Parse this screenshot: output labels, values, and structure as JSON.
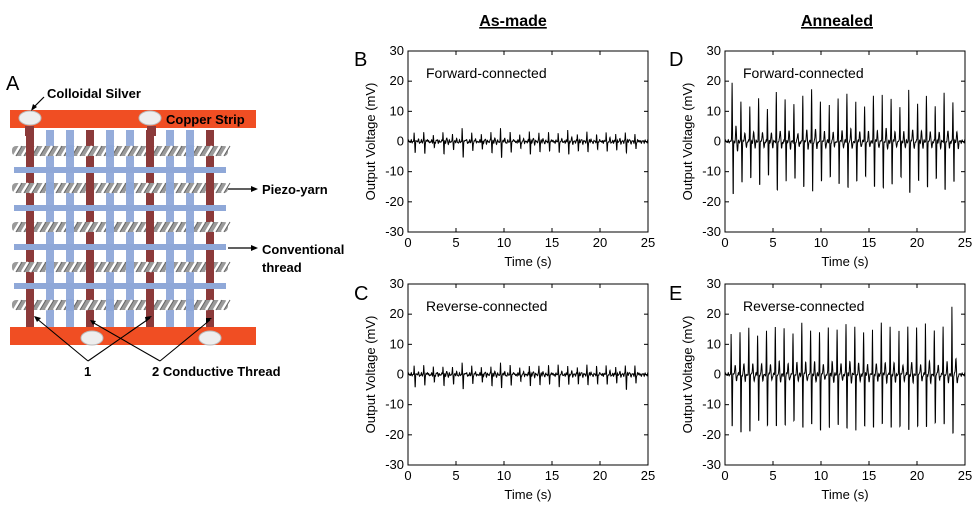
{
  "figure": {
    "column_headers": [
      "As-made",
      "Annealed"
    ],
    "schematic": {
      "panel_letter": "A",
      "labels": {
        "colloidal_silver": "Colloidal Silver",
        "copper_strip": "Copper Strip",
        "piezo_yarn": "Piezo-yarn",
        "conventional_line1": "Conventional",
        "conventional_line2": "thread",
        "one": "1",
        "two": "2 Conductive Thread"
      },
      "colors": {
        "copper": "#f04e23",
        "conductive": "#8b3a3a",
        "conventional": "#8fa8d8",
        "piezo": "#9a9a9a",
        "silver": "#eeeeee"
      }
    }
  },
  "chart_data": [
    {
      "id": "B",
      "type": "line",
      "panel_letter": "B",
      "annotation": "Forward-connected",
      "xlabel": "Time (s)",
      "ylabel": "Output Voltage (mV)",
      "xlim": [
        0,
        25
      ],
      "ylim": [
        -30,
        30
      ],
      "xticks": [
        0,
        5,
        10,
        15,
        20,
        25
      ],
      "yticks": [
        -30,
        -20,
        -10,
        0,
        10,
        20,
        30
      ],
      "pulse_period_s": 1.0,
      "pulse_start_s": 0.7,
      "peak_pos_mV": [
        2.5,
        3.0,
        2.0,
        3.5,
        2.5,
        4.0,
        3.0,
        2.5,
        3.5,
        4.0,
        3.0,
        2.5,
        3.5,
        3.0,
        2.5,
        3.0,
        4.0,
        2.5,
        3.0,
        2.0,
        3.5,
        2.5,
        3.0,
        2.0
      ],
      "peak_neg_mV": [
        -3.5,
        -4.0,
        -2.5,
        -4.5,
        -3.0,
        -5.0,
        -3.5,
        -3.0,
        -4.0,
        -5.5,
        -3.5,
        -3.0,
        -4.5,
        -3.5,
        -3.0,
        -4.0,
        -5.0,
        -3.0,
        -3.5,
        -2.5,
        -4.0,
        -3.0,
        -3.5,
        -2.5
      ]
    },
    {
      "id": "C",
      "type": "line",
      "panel_letter": "C",
      "annotation": "Reverse-connected",
      "xlabel": "Time (s)",
      "ylabel": "Output Voltage (mV)",
      "xlim": [
        0,
        25
      ],
      "ylim": [
        -30,
        30
      ],
      "xticks": [
        0,
        5,
        10,
        15,
        20,
        25
      ],
      "yticks": [
        -30,
        -20,
        -10,
        0,
        10,
        20,
        30
      ],
      "pulse_period_s": 1.0,
      "pulse_start_s": 0.7,
      "peak_pos_mV": [
        2.5,
        3.0,
        2.5,
        3.0,
        2.5,
        3.5,
        3.0,
        2.5,
        3.0,
        3.5,
        3.0,
        2.5,
        3.0,
        3.0,
        2.5,
        3.5,
        3.0,
        2.5,
        3.0,
        2.5,
        3.5,
        2.5,
        3.0,
        2.5
      ],
      "peak_neg_mV": [
        -4.0,
        -3.5,
        -3.0,
        -4.0,
        -3.5,
        -4.5,
        -3.5,
        -3.0,
        -4.0,
        -4.5,
        -3.5,
        -3.0,
        -4.0,
        -3.5,
        -3.0,
        -4.5,
        -4.0,
        -3.0,
        -3.5,
        -3.0,
        -4.0,
        -3.0,
        -5.0,
        -3.0
      ]
    },
    {
      "id": "D",
      "type": "line",
      "panel_letter": "D",
      "annotation": "Forward-connected",
      "xlabel": "Time (s)",
      "ylabel": "Output Voltage (mV)",
      "xlim": [
        0,
        25
      ],
      "ylim": [
        -30,
        30
      ],
      "xticks": [
        0,
        5,
        10,
        15,
        20,
        25
      ],
      "yticks": [
        -30,
        -20,
        -10,
        0,
        10,
        20,
        30
      ],
      "pulse_period_s": 0.92,
      "pulse_start_s": 0.8,
      "peak_pos_mV": [
        20,
        13,
        12,
        14,
        11,
        16,
        14,
        12,
        15,
        17,
        13,
        12,
        14,
        16,
        13,
        12,
        15,
        16,
        14,
        12,
        17,
        13,
        15,
        12,
        16,
        13
      ],
      "peak_neg_mV": [
        -19,
        -14,
        -13,
        -15,
        -12,
        -17,
        -14,
        -13,
        -16,
        -18,
        -14,
        -13,
        -15,
        -17,
        -14,
        -13,
        -16,
        -17,
        -15,
        -13,
        -18,
        -14,
        -16,
        -13,
        -17,
        -14
      ]
    },
    {
      "id": "E",
      "type": "line",
      "panel_letter": "E",
      "annotation": "Reverse-connected",
      "xlabel": "Time (s)",
      "ylabel": "Output Voltage (mV)",
      "xlim": [
        0,
        25
      ],
      "ylim": [
        -30,
        30
      ],
      "xticks": [
        0,
        5,
        10,
        15,
        20,
        25
      ],
      "yticks": [
        -30,
        -20,
        -10,
        0,
        10,
        20,
        30
      ],
      "pulse_period_s": 0.92,
      "pulse_start_s": 0.7,
      "peak_pos_mV": [
        13,
        14,
        15,
        13,
        14,
        16,
        15,
        14,
        17,
        15,
        14,
        16,
        15,
        17,
        16,
        14,
        15,
        17,
        16,
        14,
        16,
        15,
        17,
        14,
        16,
        22
      ],
      "peak_neg_mV": [
        -18,
        -21,
        -20,
        -17,
        -18,
        -19,
        -18,
        -17,
        -19,
        -18,
        -20,
        -19,
        -18,
        -19,
        -20,
        -18,
        -19,
        -17,
        -19,
        -18,
        -20,
        -18,
        -19,
        -17,
        -18,
        -21
      ]
    }
  ]
}
